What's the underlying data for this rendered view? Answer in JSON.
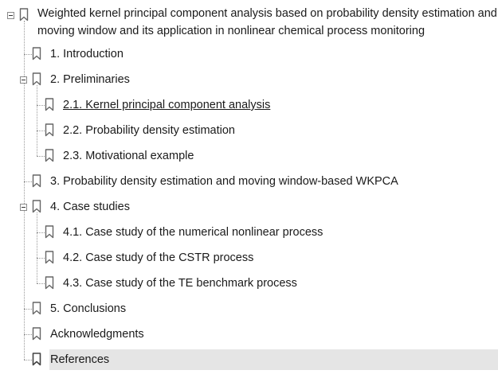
{
  "outline": {
    "root": {
      "label": "Weighted kernel principal component analysis based on probability density estimation and moving window and its application in nonlinear chemical process monitoring",
      "expanded": true
    },
    "items": [
      {
        "label": "1. Introduction",
        "level": 1,
        "has_children": false
      },
      {
        "label": "2. Preliminaries",
        "level": 1,
        "has_children": true,
        "expanded": true
      },
      {
        "label": "2.1. Kernel principal component analysis",
        "level": 2,
        "current": true
      },
      {
        "label": "2.2. Probability density estimation",
        "level": 2
      },
      {
        "label": "2.3. Motivational example",
        "level": 2
      },
      {
        "label": "3. Probability density estimation and moving window-based WKPCA",
        "level": 1,
        "has_children": false
      },
      {
        "label": "4. Case studies",
        "level": 1,
        "has_children": true,
        "expanded": true
      },
      {
        "label": "4.1. Case study of the numerical nonlinear process",
        "level": 2
      },
      {
        "label": "4.2. Case study of the CSTR process",
        "level": 2
      },
      {
        "label": "4.3. Case study of the TE benchmark process",
        "level": 2
      },
      {
        "label": "5. Conclusions",
        "level": 1,
        "has_children": false
      },
      {
        "label": "Acknowledgments",
        "level": 1,
        "has_children": false
      },
      {
        "label": "References",
        "level": 1,
        "has_children": false,
        "selected": true
      }
    ]
  },
  "icons": {
    "bookmark": "bookmark-icon",
    "collapse": "collapse-toggle-icon"
  },
  "colors": {
    "selection_bg": "#e5e5e5",
    "text": "#1a1a1a",
    "bookmark_stroke": "#666666"
  }
}
